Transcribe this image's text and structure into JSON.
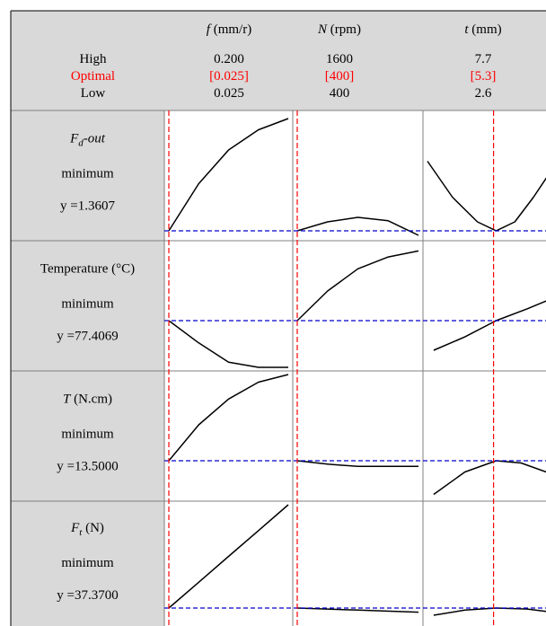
{
  "chart_data": {
    "type": "line",
    "title": "",
    "factors": [
      {
        "symbol": "f",
        "unit": "(mm/r)",
        "high": "0.200",
        "optimal": "[0.025]",
        "low": "0.025",
        "range": [
          0.025,
          0.2
        ],
        "optimal_value": 0.025
      },
      {
        "symbol": "N",
        "unit": "(rpm)",
        "high": "1600",
        "optimal": "[400]",
        "low": "400",
        "range": [
          400,
          1600
        ],
        "optimal_value": 400
      },
      {
        "symbol": "t",
        "unit": "(mm)",
        "high": "7.7",
        "optimal": "[5.3]",
        "low": "2.6",
        "range": [
          2.6,
          7.7
        ],
        "optimal_value": 5.3
      }
    ],
    "row_labels": {
      "high": "High",
      "optimal": "Optimal",
      "low": "Low"
    },
    "responses": [
      {
        "name_main": "F",
        "name_sub": "d",
        "name_suffix": "-out",
        "goal": "minimum",
        "value_text": "y =1.3607",
        "curves": [
          [
            [
              0,
              0.0
            ],
            [
              0.25,
              0.42
            ],
            [
              0.5,
              0.72
            ],
            [
              0.75,
              0.9
            ],
            [
              1,
              1.0
            ]
          ],
          [
            [
              0,
              0.0
            ],
            [
              0.25,
              0.08
            ],
            [
              0.5,
              0.12
            ],
            [
              0.75,
              0.09
            ],
            [
              1,
              -0.04
            ]
          ],
          [
            [
              0,
              0.62
            ],
            [
              0.2,
              0.3
            ],
            [
              0.4,
              0.08
            ],
            [
              0.55,
              0.0
            ],
            [
              0.7,
              0.08
            ],
            [
              0.85,
              0.3
            ],
            [
              1,
              0.55
            ]
          ]
        ],
        "ref_level": 0.0
      },
      {
        "name_main": "Temperature (°C)",
        "name_sub": "",
        "name_suffix": "",
        "goal": "minimum",
        "value_text": "y =77.4069",
        "curves": [
          [
            [
              0,
              0.55
            ],
            [
              0.25,
              0.4
            ],
            [
              0.5,
              0.27
            ],
            [
              0.75,
              0.2
            ],
            [
              1,
              0.18
            ]
          ],
          [
            [
              0,
              0.55
            ],
            [
              0.25,
              0.75
            ],
            [
              0.5,
              0.9
            ],
            [
              0.75,
              0.98
            ],
            [
              1,
              1.02
            ]
          ],
          [
            [
              0.05,
              0.35
            ],
            [
              0.3,
              0.44
            ],
            [
              0.55,
              0.55
            ],
            [
              0.8,
              0.63
            ],
            [
              1,
              0.7
            ]
          ]
        ],
        "ref_level": 0.55
      },
      {
        "name_main": "T",
        "name_sub": "",
        "name_suffix": " (N.cm)",
        "goal": "minimum",
        "value_text": "y =13.5000",
        "curves": [
          [
            [
              0,
              0.0
            ],
            [
              0.25,
              0.32
            ],
            [
              0.5,
              0.55
            ],
            [
              0.75,
              0.7
            ],
            [
              1,
              0.78
            ]
          ],
          [
            [
              0,
              0.0
            ],
            [
              0.25,
              -0.03
            ],
            [
              0.5,
              -0.05
            ],
            [
              0.75,
              -0.05
            ],
            [
              1,
              -0.05
            ]
          ],
          [
            [
              0.05,
              -0.3
            ],
            [
              0.3,
              -0.1
            ],
            [
              0.55,
              0.0
            ],
            [
              0.75,
              -0.02
            ],
            [
              1,
              -0.12
            ]
          ]
        ],
        "ref_level": 0.0
      },
      {
        "name_main": "F",
        "name_sub": "t",
        "name_suffix": " (N)",
        "goal": "minimum",
        "value_text": "y =37.3700",
        "curves": [
          [
            [
              0,
              0.0
            ],
            [
              0.25,
              0.25
            ],
            [
              0.5,
              0.5
            ],
            [
              0.75,
              0.75
            ],
            [
              1,
              1.0
            ]
          ],
          [
            [
              0,
              0.0
            ],
            [
              0.5,
              -0.02
            ],
            [
              1,
              -0.04
            ]
          ],
          [
            [
              0.05,
              -0.07
            ],
            [
              0.3,
              -0.02
            ],
            [
              0.55,
              0.0
            ],
            [
              0.8,
              -0.01
            ],
            [
              1,
              -0.04
            ]
          ]
        ],
        "ref_level": 0.0
      }
    ],
    "colors": {
      "header_bg": "#d9d9d9",
      "optimal_text": "#ff0000",
      "vline": "#ff0000",
      "hline": "#0000cc",
      "grid": "#808080",
      "curve": "#000000"
    }
  }
}
